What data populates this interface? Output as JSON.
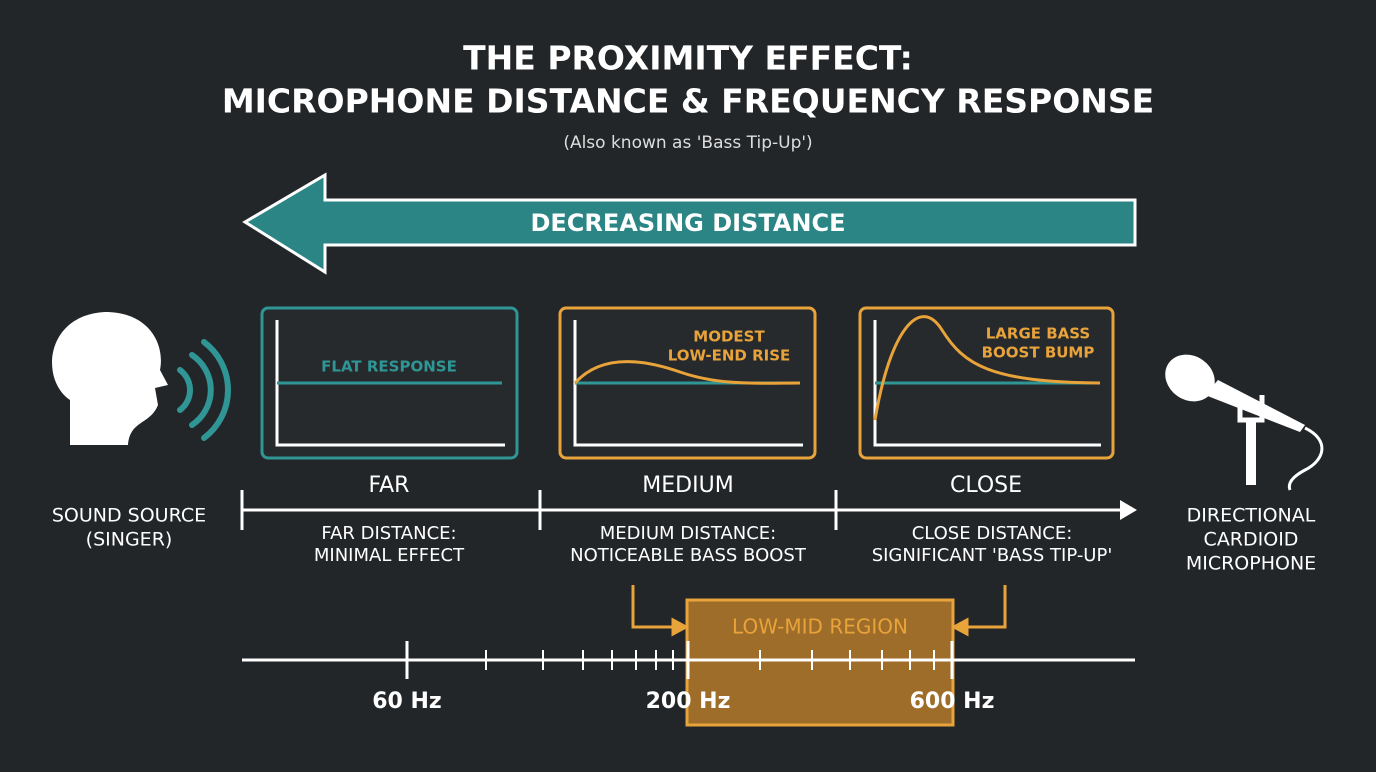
{
  "header": {
    "title_lines": [
      "THE PROXIMITY EFFECT:",
      "MICROPHONE DISTANCE & FREQUENCY RESPONSE"
    ],
    "subtitle": "(Also known as 'Bass Tip-Up')"
  },
  "arrow": {
    "label": "DECREASING DISTANCE"
  },
  "source": {
    "label_lines": [
      "SOUND SOURCE",
      "(SINGER)"
    ]
  },
  "microphone": {
    "label_lines": [
      "DIRECTIONAL",
      "CARDIOID",
      "MICROPHONE"
    ]
  },
  "panels": [
    {
      "graph_label_lines": [
        "FLAT RESPONSE"
      ],
      "stage": "FAR",
      "description_lines": [
        "FAR DISTANCE:",
        "MINIMAL EFFECT"
      ]
    },
    {
      "graph_label_lines": [
        "MODEST",
        "LOW-END RISE"
      ],
      "stage": "MEDIUM",
      "description_lines": [
        "MEDIUM DISTANCE:",
        "NOTICEABLE BASS BOOST"
      ]
    },
    {
      "graph_label_lines": [
        "LARGE BASS",
        "BOOST BUMP"
      ],
      "stage": "CLOSE",
      "description_lines": [
        "CLOSE DISTANCE:",
        "SIGNIFICANT 'BASS TIP-UP'"
      ]
    }
  ],
  "frequency_axis": {
    "region_label": "LOW-MID REGION",
    "tick_labels": [
      "60 Hz",
      "200 Hz",
      "600 Hz"
    ]
  }
}
